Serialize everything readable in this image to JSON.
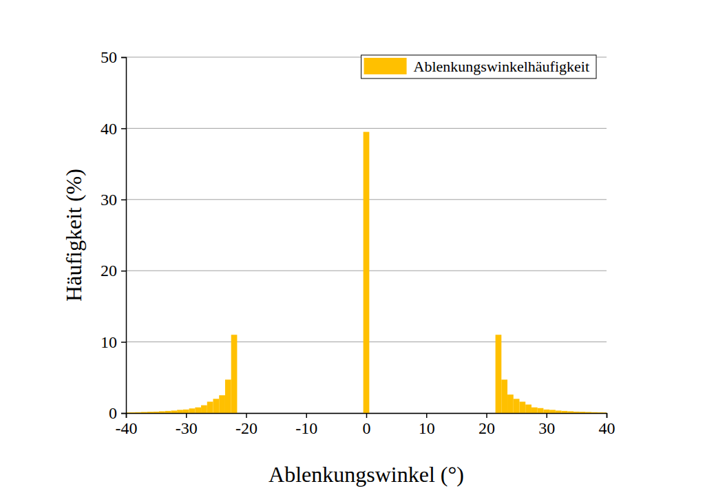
{
  "chart_data": {
    "type": "histogram",
    "x_label": "Ablenkungswinkel (°)",
    "y_label": "Häufigkeit (%)",
    "bins": [
      -40.5,
      -39.5,
      -38.5,
      -37.5,
      -36.5,
      -35.5,
      -34.5,
      -33.5,
      -32.5,
      -31.5,
      -30.5,
      -29.5,
      -28.5,
      -27.5,
      -26.5,
      -25.5,
      -24.5,
      -23.5,
      -22.5,
      -21.5,
      -20.5,
      -19.5,
      -18.5,
      -17.5,
      -16.5,
      -15.5,
      -14.5,
      -13.5,
      -12.5,
      -11.5,
      -10.5,
      -9.5,
      -8.5,
      -7.5,
      -6.5,
      -5.5,
      -4.5,
      -3.5,
      -2.5,
      -1.5,
      -0.5,
      0.5,
      1.5,
      2.5,
      3.5,
      4.5,
      5.5,
      6.5,
      7.5,
      8.5,
      9.5,
      10.5,
      11.5,
      12.5,
      13.5,
      14.5,
      15.5,
      16.5,
      17.5,
      18.5,
      19.5,
      20.5,
      21.5,
      22.5,
      23.5,
      24.5,
      25.5,
      26.5,
      27.5,
      28.5,
      29.5,
      30.5,
      31.5,
      32.5,
      33.5,
      34.5,
      35.5,
      36.5,
      37.5,
      38.5,
      39.5,
      40.5
    ],
    "series": [
      {
        "name": "Ablenkungswinkelhäufigkeit",
        "color": "#ffc000",
        "values": [
          0.08,
          0.1,
          0.12,
          0.15,
          0.18,
          0.2,
          0.25,
          0.3,
          0.35,
          0.45,
          0.5,
          0.65,
          0.8,
          1.1,
          1.6,
          2.0,
          2.5,
          4.7,
          11.0,
          0,
          0,
          0,
          0,
          0,
          0,
          0,
          0,
          0,
          0,
          0,
          0,
          0,
          0,
          0,
          0,
          0,
          0,
          0,
          0,
          0,
          39.5,
          0,
          0,
          0,
          0,
          0,
          0,
          0,
          0,
          0,
          0,
          0,
          0,
          0,
          0,
          0,
          0,
          0,
          0,
          0,
          0,
          0,
          11.0,
          4.7,
          2.6,
          2.0,
          1.6,
          1.2,
          0.8,
          0.7,
          0.5,
          0.45,
          0.35,
          0.3,
          0.25,
          0.2,
          0.18,
          0.15,
          0.12,
          0.1,
          0.08
        ]
      }
    ],
    "xlim": [
      -40,
      40
    ],
    "ylim": [
      0,
      50
    ],
    "xticks": [
      -40,
      -30,
      -20,
      -10,
      0,
      10,
      20,
      30,
      40
    ],
    "yticks": [
      0,
      10,
      20,
      30,
      40,
      50
    ],
    "grid": true,
    "legend": "upper right"
  }
}
